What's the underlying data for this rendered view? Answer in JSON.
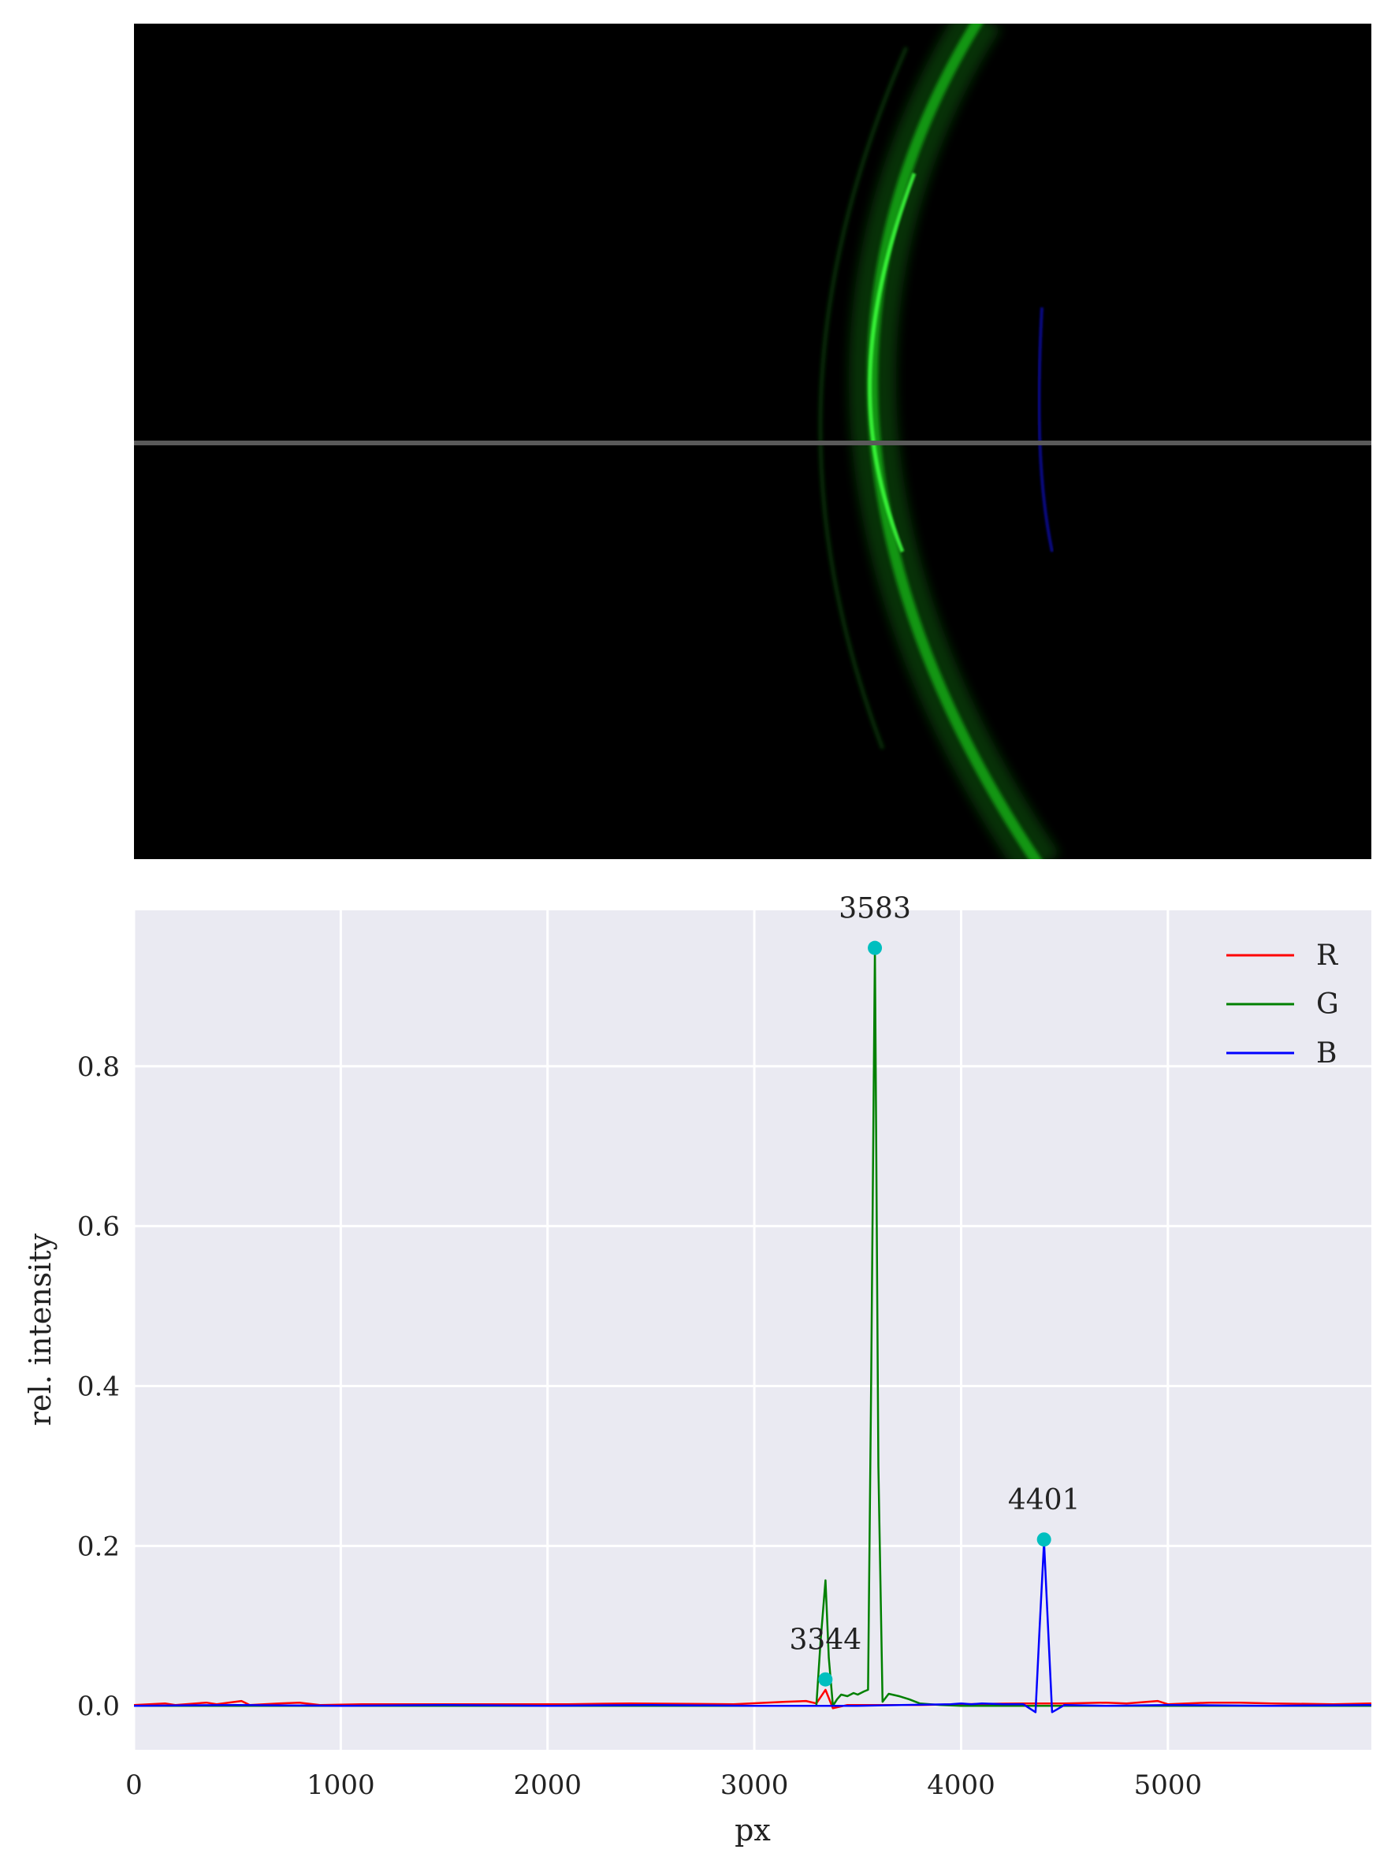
{
  "chart_data": [
    {
      "type": "image",
      "description_visible": "spectrum image with green arc, faint blue line and horizontal grey scan line",
      "colors": {
        "background": "#000000",
        "arc": "#1fd81f",
        "blue_line": "#1010c0",
        "scan_line": "#5a5a5a"
      },
      "scan_row_fraction": 0.5
    },
    {
      "type": "line",
      "xlabel": "px",
      "ylabel": "rel. intensity",
      "xlim": [
        0,
        5984
      ],
      "ylim": [
        -0.055,
        0.995
      ],
      "xticks": [
        0,
        1000,
        2000,
        3000,
        4000,
        5000
      ],
      "xtick_labels": [
        "0",
        "1000",
        "2000",
        "3000",
        "4000",
        "5000"
      ],
      "yticks": [
        0.0,
        0.2,
        0.4,
        0.6,
        0.8
      ],
      "ytick_labels": [
        "0.0",
        "0.2",
        "0.4",
        "0.6",
        "0.8"
      ],
      "grid": true,
      "legend": "top-right",
      "background": "#eaeaf2",
      "series": [
        {
          "name": "R",
          "color": "#ff0000",
          "x": [
            0,
            150,
            200,
            350,
            400,
            520,
            560,
            700,
            800,
            900,
            1100,
            1400,
            1800,
            2100,
            2400,
            2900,
            3150,
            3250,
            3300,
            3344,
            3380,
            3450,
            3600,
            3800,
            4000,
            4300,
            4500,
            4700,
            4800,
            4950,
            5000,
            5200,
            5350,
            5500,
            5800,
            5984
          ],
          "y": [
            0.001,
            0.003,
            0.001,
            0.004,
            0.002,
            0.006,
            0.001,
            0.003,
            0.004,
            0.001,
            0.002,
            0.002,
            0.002,
            0.002,
            0.003,
            0.002,
            0.005,
            0.006,
            0.003,
            0.02,
            -0.003,
            0.001,
            0.001,
            0.001,
            0.002,
            0.003,
            0.003,
            0.004,
            0.003,
            0.006,
            0.002,
            0.004,
            0.004,
            0.003,
            0.002,
            0.003
          ]
        },
        {
          "name": "G",
          "color": "#008000",
          "x": [
            0,
            3000,
            3300,
            3320,
            3344,
            3360,
            3380,
            3400,
            3420,
            3450,
            3480,
            3500,
            3530,
            3550,
            3565,
            3583,
            3600,
            3620,
            3650,
            3700,
            3750,
            3800,
            3900,
            4000,
            5984
          ],
          "y": [
            0.0,
            0.0,
            0.0,
            0.08,
            0.157,
            0.06,
            0.0,
            0.008,
            0.014,
            0.012,
            0.016,
            0.014,
            0.018,
            0.02,
            0.4,
            0.948,
            0.3,
            0.005,
            0.015,
            0.012,
            0.008,
            0.003,
            0.001,
            0.0,
            0.0
          ]
        },
        {
          "name": "B",
          "color": "#0000ff",
          "x": [
            0,
            500,
            1000,
            1500,
            2000,
            2500,
            3000,
            3500,
            3950,
            4000,
            4050,
            4100,
            4200,
            4300,
            4360,
            4380,
            4401,
            4420,
            4440,
            4460,
            4500,
            4700,
            5000,
            5500,
            5984
          ],
          "y": [
            0.0,
            0.001,
            0.0,
            0.001,
            0.0,
            0.001,
            0.0,
            0.0,
            0.002,
            0.003,
            0.002,
            0.003,
            0.002,
            0.002,
            -0.008,
            0.1,
            0.205,
            0.1,
            -0.008,
            -0.005,
            0.001,
            0.0,
            0.001,
            0.0,
            0.001
          ]
        }
      ],
      "markers": [
        {
          "x": 3344,
          "y": 0.033,
          "label": "3344",
          "color": "#00bfbf"
        },
        {
          "x": 3583,
          "y": 0.948,
          "label": "3583",
          "color": "#00bfbf"
        },
        {
          "x": 4401,
          "y": 0.208,
          "label": "4401",
          "color": "#00bfbf"
        }
      ]
    }
  ]
}
